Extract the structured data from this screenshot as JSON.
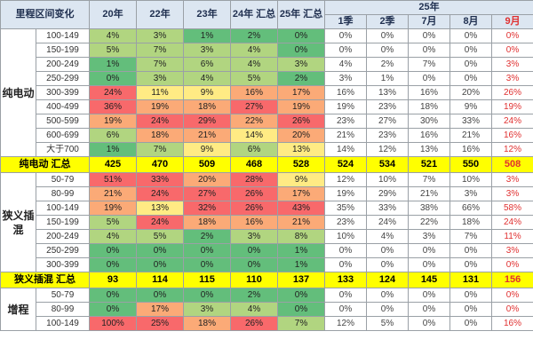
{
  "header": {
    "range_col": "里程区间变化",
    "y20": "20年",
    "y22": "22年",
    "y23": "23年",
    "y24": "24年 汇总",
    "y25": "25年 汇总",
    "group25": "25年",
    "q1": "1季",
    "q2": "2季",
    "m7": "7月",
    "m8": "8月",
    "m9": "9月"
  },
  "groups": [
    {
      "name": "纯电动",
      "rows": [
        {
          "range": "100-149",
          "y20": "4%",
          "y22": "3%",
          "y23": "1%",
          "y24": "2%",
          "y25": "0%",
          "q1": "0%",
          "q2": "0%",
          "m7": "0%",
          "m8": "0%",
          "m9": "0%"
        },
        {
          "range": "150-199",
          "y20": "5%",
          "y22": "7%",
          "y23": "3%",
          "y24": "4%",
          "y25": "0%",
          "q1": "0%",
          "q2": "0%",
          "m7": "0%",
          "m8": "0%",
          "m9": "0%"
        },
        {
          "range": "200-249",
          "y20": "1%",
          "y22": "7%",
          "y23": "6%",
          "y24": "4%",
          "y25": "3%",
          "q1": "4%",
          "q2": "2%",
          "m7": "7%",
          "m8": "0%",
          "m9": "3%"
        },
        {
          "range": "250-299",
          "y20": "0%",
          "y22": "3%",
          "y23": "4%",
          "y24": "5%",
          "y25": "2%",
          "q1": "3%",
          "q2": "1%",
          "m7": "0%",
          "m8": "0%",
          "m9": "3%"
        },
        {
          "range": "300-399",
          "y20": "24%",
          "y22": "11%",
          "y23": "9%",
          "y24": "16%",
          "y25": "17%",
          "q1": "16%",
          "q2": "13%",
          "m7": "16%",
          "m8": "20%",
          "m9": "26%"
        },
        {
          "range": "400-499",
          "y20": "36%",
          "y22": "19%",
          "y23": "18%",
          "y24": "27%",
          "y25": "19%",
          "q1": "19%",
          "q2": "23%",
          "m7": "18%",
          "m8": "9%",
          "m9": "19%"
        },
        {
          "range": "500-599",
          "y20": "19%",
          "y22": "24%",
          "y23": "29%",
          "y24": "22%",
          "y25": "26%",
          "q1": "23%",
          "q2": "27%",
          "m7": "30%",
          "m8": "33%",
          "m9": "24%"
        },
        {
          "range": "600-699",
          "y20": "6%",
          "y22": "18%",
          "y23": "21%",
          "y24": "14%",
          "y25": "20%",
          "q1": "21%",
          "q2": "23%",
          "m7": "16%",
          "m8": "21%",
          "m9": "16%"
        },
        {
          "range": "大于700",
          "y20": "1%",
          "y22": "7%",
          "y23": "9%",
          "y24": "6%",
          "y25": "13%",
          "q1": "14%",
          "q2": "12%",
          "m7": "13%",
          "m8": "16%",
          "m9": "12%"
        }
      ],
      "total": {
        "label": "纯电动 汇总",
        "y20": "425",
        "y22": "470",
        "y23": "509",
        "y24": "468",
        "y25": "528",
        "q1": "524",
        "q2": "534",
        "m7": "521",
        "m8": "550",
        "m9": "508"
      }
    },
    {
      "name": "狭义插混",
      "rows": [
        {
          "range": "50-79",
          "y20": "51%",
          "y22": "33%",
          "y23": "20%",
          "y24": "28%",
          "y25": "9%",
          "q1": "12%",
          "q2": "10%",
          "m7": "7%",
          "m8": "10%",
          "m9": "3%"
        },
        {
          "range": "80-99",
          "y20": "21%",
          "y22": "24%",
          "y23": "27%",
          "y24": "26%",
          "y25": "17%",
          "q1": "19%",
          "q2": "29%",
          "m7": "21%",
          "m8": "3%",
          "m9": "3%"
        },
        {
          "range": "100-149",
          "y20": "19%",
          "y22": "13%",
          "y23": "32%",
          "y24": "26%",
          "y25": "43%",
          "q1": "35%",
          "q2": "33%",
          "m7": "38%",
          "m8": "66%",
          "m9": "58%"
        },
        {
          "range": "150-199",
          "y20": "5%",
          "y22": "24%",
          "y23": "18%",
          "y24": "16%",
          "y25": "21%",
          "q1": "23%",
          "q2": "24%",
          "m7": "22%",
          "m8": "18%",
          "m9": "24%"
        },
        {
          "range": "200-249",
          "y20": "4%",
          "y22": "5%",
          "y23": "2%",
          "y24": "3%",
          "y25": "8%",
          "q1": "10%",
          "q2": "4%",
          "m7": "3%",
          "m8": "7%",
          "m9": "11%"
        },
        {
          "range": "250-299",
          "y20": "0%",
          "y22": "0%",
          "y23": "0%",
          "y24": "0%",
          "y25": "1%",
          "q1": "0%",
          "q2": "0%",
          "m7": "0%",
          "m8": "0%",
          "m9": "3%"
        },
        {
          "range": "300-399",
          "y20": "0%",
          "y22": "0%",
          "y23": "0%",
          "y24": "0%",
          "y25": "1%",
          "q1": "0%",
          "q2": "0%",
          "m7": "0%",
          "m8": "0%",
          "m9": "0%"
        }
      ],
      "total": {
        "label": "狭义插混 汇总",
        "y20": "93",
        "y22": "114",
        "y23": "115",
        "y24": "110",
        "y25": "137",
        "q1": "133",
        "q2": "124",
        "m7": "145",
        "m8": "131",
        "m9": "156"
      }
    },
    {
      "name": "增程",
      "rows": [
        {
          "range": "50-79",
          "y20": "0%",
          "y22": "0%",
          "y23": "0%",
          "y24": "2%",
          "y25": "0%",
          "q1": "0%",
          "q2": "0%",
          "m7": "0%",
          "m8": "0%",
          "m9": "0%"
        },
        {
          "range": "80-99",
          "y20": "0%",
          "y22": "17%",
          "y23": "3%",
          "y24": "4%",
          "y25": "0%",
          "q1": "0%",
          "q2": "0%",
          "m7": "0%",
          "m8": "0%",
          "m9": "0%"
        },
        {
          "range": "100-149",
          "y20": "100%",
          "y22": "25%",
          "y23": "18%",
          "y24": "26%",
          "y25": "7%",
          "q1": "12%",
          "q2": "5%",
          "m7": "0%",
          "m8": "0%",
          "m9": "16%"
        }
      ]
    }
  ],
  "colors": {
    "red": "#f8696b",
    "orange": "#fbaa77",
    "yellow": "#ffeb84",
    "lgreen": "#b1d580",
    "green": "#63be7b",
    "header_bg": "#dce6f1",
    "total_bg": "#ffff00",
    "accent_red": "#e03030"
  }
}
